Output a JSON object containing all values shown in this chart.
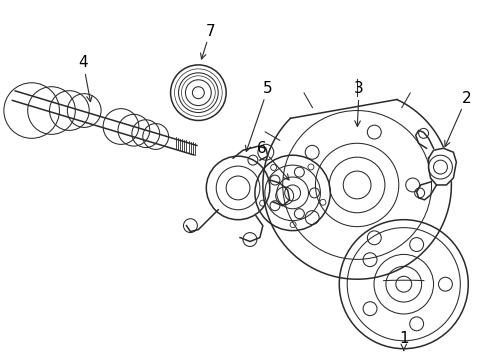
{
  "bg_color": "#ffffff",
  "line_color": "#2a2a2a",
  "label_color": "#000000",
  "fig_width": 4.9,
  "fig_height": 3.6,
  "dpi": 100,
  "label_fontsize": 11
}
